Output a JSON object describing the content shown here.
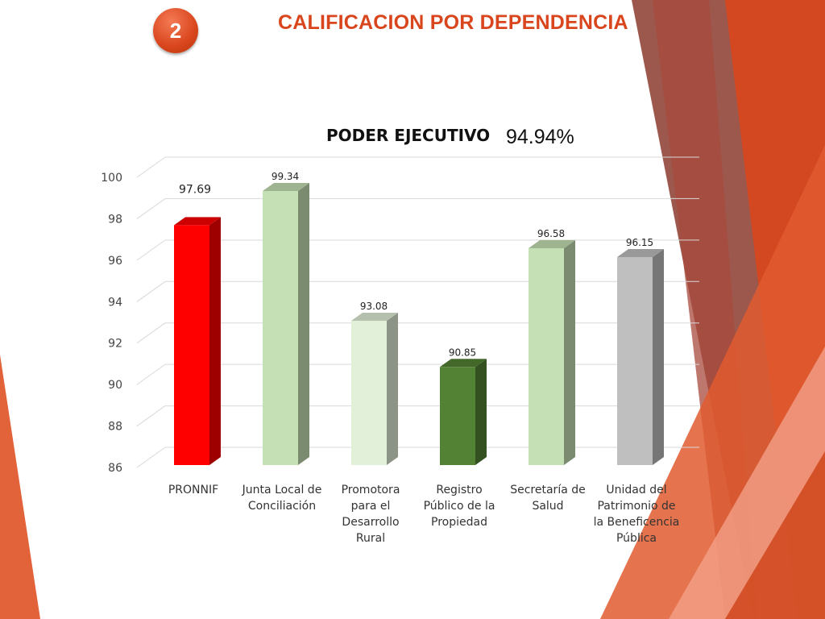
{
  "slide": {
    "number": "2",
    "title": "CALIFICACION POR DEPENDENCIA",
    "accent_color": "#d9461d"
  },
  "chart_data": {
    "type": "bar",
    "title": "PODER EJECUTIVO",
    "total_label": "94.94%",
    "categories": [
      [
        "PRONNIF"
      ],
      [
        "Junta Local de",
        "Conciliación"
      ],
      [
        "Promotora",
        "para el",
        "Desarrollo",
        "Rural"
      ],
      [
        "Registro",
        "Público de la",
        "Propiedad"
      ],
      [
        "Secretaría de",
        "Salud"
      ],
      [
        "Unidad del",
        "Patrimonio de",
        "la Beneficencia",
        "Pública"
      ]
    ],
    "values": [
      97.69,
      99.34,
      93.08,
      90.85,
      96.58,
      96.15
    ],
    "value_labels": [
      "97.69",
      "99.34",
      "93.08",
      "90.85",
      "96.58",
      "96.15"
    ],
    "bar_colors": [
      "#ff0000",
      "#c5e0b4",
      "#e2efd9",
      "#548235",
      "#c5e0b4",
      "#bfbfbf"
    ],
    "ylim": [
      86,
      100
    ],
    "yticks": [
      86,
      88,
      90,
      92,
      94,
      96,
      98,
      100
    ],
    "grid": true,
    "style": "3d-column"
  }
}
